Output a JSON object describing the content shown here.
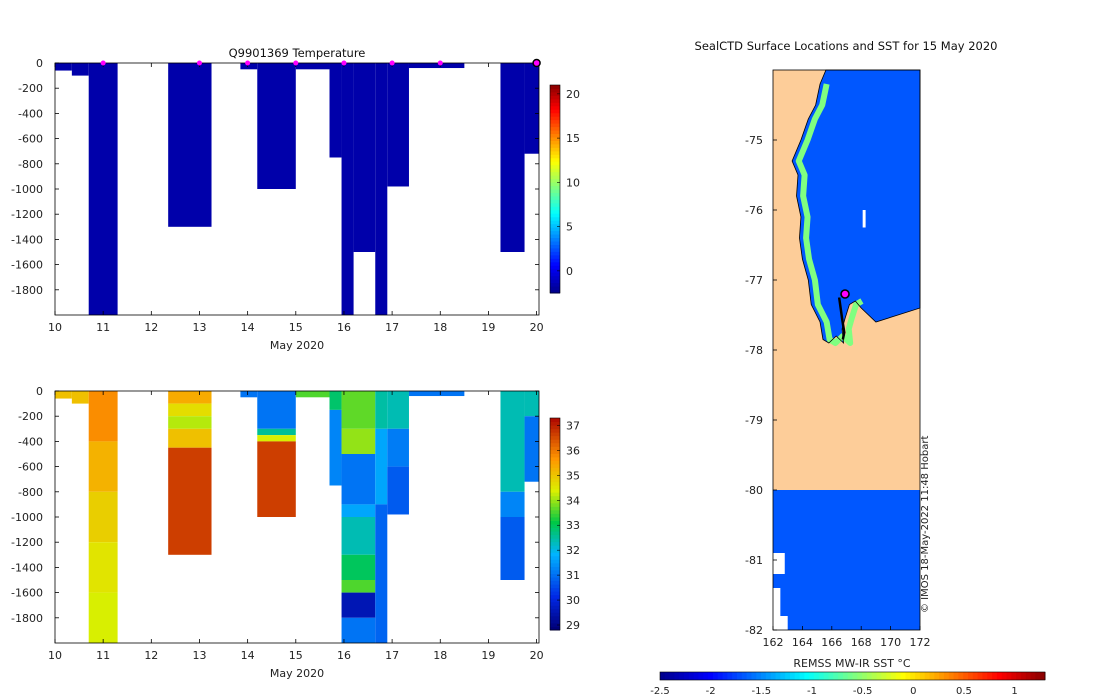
{
  "colors": {
    "deep_blue": "#00007f",
    "white": "#ffffff",
    "land": "#fdcd99",
    "sea": "#0a76e6",
    "green": "#20c040",
    "magenta": "#ff00ff"
  },
  "chart_data": [
    {
      "id": "temperature",
      "type": "heatmap",
      "title": "Q9901369  Temperature",
      "xlabel": "May 2020",
      "ylabel": "",
      "x_ticks": [
        "10",
        "11",
        "12",
        "13",
        "14",
        "15",
        "16",
        "17",
        "18",
        "19",
        "20"
      ],
      "y_ticks": [
        "0",
        "-200",
        "-400",
        "-600",
        "-800",
        "-1000",
        "-1200",
        "-1400",
        "-1600",
        "-1800"
      ],
      "xlim": [
        10,
        20.05
      ],
      "ylim": [
        -2000,
        0
      ],
      "colorbar_ticks": [
        "20",
        "15",
        "10",
        "5",
        "0"
      ],
      "colorbar_range": [
        -2.5,
        21
      ],
      "profile_markers_x": [
        11,
        13,
        14,
        15,
        16,
        17,
        18,
        20
      ],
      "profiles": [
        {
          "x0": 10.0,
          "x1": 10.35,
          "bottom": -60,
          "value": -1.8
        },
        {
          "x0": 10.35,
          "x1": 10.7,
          "bottom": -100,
          "value": -1.8
        },
        {
          "x0": 10.7,
          "x1": 11.3,
          "bottom": -2000,
          "value": -1.8
        },
        {
          "x0": 12.35,
          "x1": 13.25,
          "bottom": -1300,
          "value": -1.8
        },
        {
          "x0": 13.85,
          "x1": 14.2,
          "bottom": -50,
          "value": -1.8
        },
        {
          "x0": 14.2,
          "x1": 15.0,
          "bottom": -1000,
          "value": -1.8
        },
        {
          "x0": 15.0,
          "x1": 15.7,
          "bottom": -50,
          "value": -1.8
        },
        {
          "x0": 15.7,
          "x1": 15.95,
          "bottom": -750,
          "value": -1.8
        },
        {
          "x0": 15.95,
          "x1": 16.2,
          "bottom": -2000,
          "value": -1.8
        },
        {
          "x0": 16.2,
          "x1": 16.65,
          "bottom": -1500,
          "value": -1.8
        },
        {
          "x0": 16.65,
          "x1": 16.9,
          "bottom": -2000,
          "value": -1.8
        },
        {
          "x0": 16.9,
          "x1": 17.35,
          "bottom": -980,
          "value": -1.8
        },
        {
          "x0": 17.35,
          "x1": 18.5,
          "bottom": -40,
          "value": -1.8
        },
        {
          "x0": 19.25,
          "x1": 19.75,
          "bottom": -1500,
          "value": -1.8
        },
        {
          "x0": 19.75,
          "x1": 20.05,
          "bottom": -720,
          "value": -1.8
        }
      ]
    },
    {
      "id": "salinity",
      "type": "heatmap",
      "title": "",
      "xlabel": "May 2020",
      "x_ticks": [
        "10",
        "11",
        "12",
        "13",
        "14",
        "15",
        "16",
        "17",
        "18",
        "19",
        "20"
      ],
      "y_ticks": [
        "0",
        "-200",
        "-400",
        "-600",
        "-800",
        "-1000",
        "-1200",
        "-1400",
        "-1600",
        "-1800"
      ],
      "xlim": [
        10,
        20.05
      ],
      "ylim": [
        -2000,
        0
      ],
      "colorbar_ticks": [
        "37",
        "36",
        "35",
        "34",
        "33",
        "32",
        "31",
        "30",
        "29"
      ],
      "colorbar_range": [
        28.8,
        37.3
      ],
      "profiles": [
        {
          "x0": 10.0,
          "x1": 10.35,
          "bottom": -60,
          "value": 35.0
        },
        {
          "x0": 10.35,
          "x1": 10.7,
          "bottom": -100,
          "value": 35.0
        },
        {
          "x0": 10.7,
          "x1": 11.3,
          "bottom": -2000,
          "layers": [
            [
              0,
              -400,
              35.7
            ],
            [
              -400,
              -800,
              35.2
            ],
            [
              -800,
              -1200,
              34.8
            ],
            [
              -1200,
              -1600,
              34.5
            ],
            [
              -1600,
              -2000,
              34.3
            ]
          ]
        },
        {
          "x0": 12.35,
          "x1": 13.25,
          "bottom": -1300,
          "layers": [
            [
              0,
              -100,
              35.3
            ],
            [
              -100,
              -200,
              34.6
            ],
            [
              -200,
              -300,
              34.1
            ],
            [
              -300,
              -450,
              35.0
            ],
            [
              -450,
              -1300,
              36.6
            ]
          ]
        },
        {
          "x0": 13.85,
          "x1": 14.2,
          "bottom": -50,
          "value": 31.0
        },
        {
          "x0": 14.2,
          "x1": 15.0,
          "bottom": -1000,
          "layers": [
            [
              0,
              -300,
              31.0
            ],
            [
              -300,
              -350,
              32.5
            ],
            [
              -350,
              -400,
              34.3
            ],
            [
              -400,
              -1000,
              36.6
            ]
          ]
        },
        {
          "x0": 15.0,
          "x1": 15.7,
          "bottom": -50,
          "value": 33.5
        },
        {
          "x0": 15.7,
          "x1": 15.95,
          "bottom": -750,
          "layers": [
            [
              0,
              -150,
              32.8
            ],
            [
              -150,
              -750,
              31.2
            ]
          ]
        },
        {
          "x0": 15.95,
          "x1": 16.65,
          "bottom": -2000,
          "layers": [
            [
              0,
              -300,
              33.6
            ],
            [
              -300,
              -500,
              33.9
            ],
            [
              -500,
              -900,
              31.0
            ],
            [
              -900,
              -1000,
              31.6
            ],
            [
              -1000,
              -1300,
              32.3
            ],
            [
              -1300,
              -1500,
              32.9
            ],
            [
              -1500,
              -1600,
              33.5
            ],
            [
              -1600,
              -1800,
              29.5
            ],
            [
              -1800,
              -2000,
              31.0
            ]
          ]
        },
        {
          "x0": 16.65,
          "x1": 16.9,
          "bottom": -2000,
          "layers": [
            [
              0,
              -300,
              32.4
            ],
            [
              -300,
              -900,
              31.6
            ],
            [
              -900,
              -2000,
              30.8
            ]
          ]
        },
        {
          "x0": 16.9,
          "x1": 17.35,
          "bottom": -980,
          "layers": [
            [
              0,
              -300,
              32.3
            ],
            [
              -300,
              -600,
              31.1
            ],
            [
              -600,
              -980,
              30.7
            ]
          ]
        },
        {
          "x0": 17.35,
          "x1": 18.5,
          "bottom": -40,
          "value": 31.0
        },
        {
          "x0": 19.25,
          "x1": 19.75,
          "bottom": -1500,
          "layers": [
            [
              0,
              -800,
              32.3
            ],
            [
              -800,
              -1000,
              31.2
            ],
            [
              -1000,
              -1500,
              30.7
            ]
          ]
        },
        {
          "x0": 19.75,
          "x1": 20.05,
          "bottom": -720,
          "layers": [
            [
              0,
              -200,
              32.3
            ],
            [
              -200,
              -720,
              31.0
            ]
          ]
        }
      ]
    },
    {
      "id": "sst-map",
      "type": "heatmap",
      "title": "SealCTD Surface Locations and SST for 15 May 2020",
      "x_ticks": [
        "162",
        "164",
        "166",
        "168",
        "170",
        "172"
      ],
      "y_ticks": [
        "-75",
        "-76",
        "-77",
        "-78",
        "-79",
        "-80",
        "-81",
        "-82"
      ],
      "xlim": [
        162,
        172
      ],
      "ylim": [
        -82,
        -74.0
      ],
      "colorbar_label": "REMSS MW-IR SST °C",
      "colorbar_ticks": [
        "-2.5",
        "-2",
        "-1.5",
        "-1",
        "-0.5",
        "0",
        "0.5",
        "1"
      ],
      "colorbar_range": [
        -2.5,
        1.3
      ],
      "sea_value": -1.7,
      "coast_value": -0.6,
      "seal_positions": [
        {
          "lon": 166.9,
          "lat": -77.2
        }
      ],
      "watermark": "© IMOS 18-May-2022 11:48 Hobart"
    }
  ]
}
